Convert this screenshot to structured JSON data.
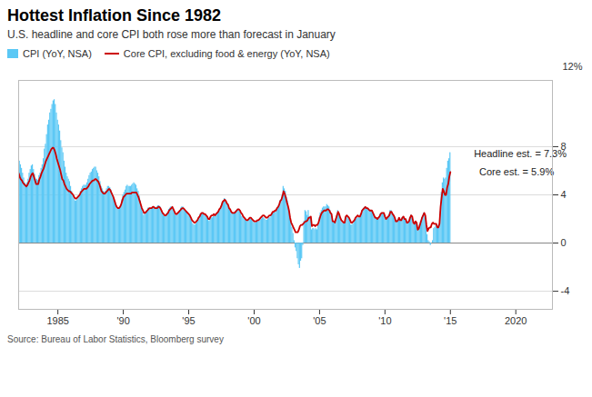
{
  "chart_data": {
    "type": "bar",
    "title": "Hottest Inflation Since 1982",
    "subtitle": "U.S. headline and core CPI both rose more than forecast in January",
    "source": "Source: Bureau of Labor Statistics, Bloomberg survey",
    "ylabel": "12%",
    "grid": true,
    "legend": "top",
    "xlim": [
      1982,
      2022.8
    ],
    "xticks": [
      1985,
      {
        "value": 1990,
        "label": "'90"
      },
      {
        "value": 1995,
        "label": "'95"
      },
      {
        "value": 2000,
        "label": "'00"
      },
      {
        "value": 2005,
        "label": "'05"
      },
      {
        "value": 2010,
        "label": "'10"
      },
      {
        "value": 2015,
        "label": "'15"
      },
      2020
    ],
    "ylim": [
      -5.5,
      13.5
    ],
    "yticks": [
      -4,
      0,
      4,
      8
    ],
    "annotations": [
      {
        "text": "Headline est. = 7.3%",
        "x": 2016.8,
        "y": 7.4
      },
      {
        "text": "Core est. = 5.9%",
        "x": 2017.2,
        "y": 5.9
      }
    ],
    "x": [
      1982,
      1982.0833,
      1982.1667,
      1982.25,
      1982.3333,
      1982.4167,
      1982.5,
      1982.5833,
      1982.6667,
      1982.75,
      1982.8333,
      1982.9167,
      1983,
      1983.0833,
      1983.1667,
      1983.25,
      1983.3333,
      1983.4167,
      1983.5,
      1983.5833,
      1983.6667,
      1983.75,
      1983.8333,
      1983.9167,
      1984,
      1984.0833,
      1984.1667,
      1984.25,
      1984.3333,
      1984.4167,
      1984.5,
      1984.5833,
      1984.6667,
      1984.75,
      1984.8333,
      1984.9167,
      1985,
      1985.0833,
      1985.1667,
      1985.25,
      1985.3333,
      1985.4167,
      1985.5,
      1985.5833,
      1985.6667,
      1985.75,
      1985.8333,
      1985.9167,
      1986,
      1986.0833,
      1986.1667,
      1986.25,
      1986.3333,
      1986.4167,
      1986.5,
      1986.5833,
      1986.6667,
      1986.75,
      1986.8333,
      1986.9167,
      1987,
      1987.0833,
      1987.1667,
      1987.25,
      1987.3333,
      1987.4167,
      1987.5,
      1987.5833,
      1987.6667,
      1987.75,
      1987.8333,
      1987.9167,
      1988,
      1988.0833,
      1988.1667,
      1988.25,
      1988.3333,
      1988.4167,
      1988.5,
      1988.5833,
      1988.6667,
      1988.75,
      1988.8333,
      1988.9167,
      1989,
      1989.0833,
      1989.1667,
      1989.25,
      1989.3333,
      1989.4167,
      1989.5,
      1989.5833,
      1989.6667,
      1989.75,
      1989.8333,
      1989.9167,
      1990,
      1990.0833,
      1990.1667,
      1990.25,
      1990.3333,
      1990.4167,
      1990.5,
      1990.5833,
      1990.6667,
      1990.75,
      1990.8333,
      1990.9167,
      1991,
      1991.0833,
      1991.1667,
      1991.25,
      1991.3333,
      1991.4167,
      1991.5,
      1991.5833,
      1991.6667,
      1991.75,
      1991.8333,
      1991.9167,
      1992,
      1992.0833,
      1992.1667,
      1992.25,
      1992.3333,
      1992.4167,
      1992.5,
      1992.5833,
      1992.6667,
      1992.75,
      1992.8333,
      1992.9167,
      1993,
      1993.0833,
      1993.1667,
      1993.25,
      1993.3333,
      1993.4167,
      1993.5,
      1993.5833,
      1993.6667,
      1993.75,
      1993.8333,
      1993.9167,
      1994,
      1994.0833,
      1994.1667,
      1994.25,
      1994.3333,
      1994.4167,
      1994.5,
      1994.5833,
      1994.6667,
      1994.75,
      1994.8333,
      1994.9167,
      1995,
      1995.0833,
      1995.1667,
      1995.25,
      1995.3333,
      1995.4167,
      1995.5,
      1995.5833,
      1995.6667,
      1995.75,
      1995.8333,
      1995.9167,
      1996,
      1996.0833,
      1996.1667,
      1996.25,
      1996.3333,
      1996.4167,
      1996.5,
      1996.5833,
      1996.6667,
      1996.75,
      1996.8333,
      1996.9167,
      1997,
      1997.0833,
      1997.1667,
      1997.25,
      1997.3333,
      1997.4167,
      1997.5,
      1997.5833,
      1997.6667,
      1997.75,
      1997.8333,
      1997.9167,
      1998,
      1998.0833,
      1998.1667,
      1998.25,
      1998.3333,
      1998.4167,
      1998.5,
      1998.5833,
      1998.6667,
      1998.75,
      1998.8333,
      1998.9167,
      1999,
      1999.0833,
      1999.1667,
      1999.25,
      1999.3333,
      1999.4167,
      1999.5,
      1999.5833,
      1999.6667,
      1999.75,
      1999.8333,
      1999.9167,
      2000,
      2000.0833,
      2000.1667,
      2000.25,
      2000.3333,
      2000.4167,
      2000.5,
      2000.5833,
      2000.6667,
      2000.75,
      2000.8333,
      2000.9167,
      2001,
      2001.0833,
      2001.1667,
      2001.25,
      2001.3333,
      2001.4167,
      2001.5,
      2001.5833,
      2001.6667,
      2001.75,
      2001.8333,
      2001.9167,
      2002,
      2002.0833,
      2002.1667,
      2002.25,
      2002.3333,
      2002.4167,
      2002.5,
      2002.5833,
      2002.6667,
      2002.75,
      2002.8333,
      2002.9167,
      2003,
      2003.0833,
      2003.1667,
      2003.25,
      2003.3333,
      2003.4167,
      2003.5,
      2003.5833,
      2003.6667,
      2003.75,
      2003.8333,
      2003.9167,
      2004,
      2004.0833,
      2004.1667,
      2004.25,
      2004.3333,
      2004.4167,
      2004.5,
      2004.5833,
      2004.6667,
      2004.75,
      2004.8333,
      2004.9167,
      2005,
      2005.0833,
      2005.1667,
      2005.25,
      2005.3333,
      2005.4167,
      2005.5,
      2005.5833,
      2005.6667,
      2005.75,
      2005.8333,
      2005.9167,
      2006,
      2006.0833,
      2006.1667,
      2006.25,
      2006.3333,
      2006.4167,
      2006.5,
      2006.5833,
      2006.6667,
      2006.75,
      2006.8333,
      2006.9167,
      2007,
      2007.0833,
      2007.1667,
      2007.25,
      2007.3333,
      2007.4167,
      2007.5,
      2007.5833,
      2007.6667,
      2007.75,
      2007.8333,
      2007.9167,
      2008,
      2008.0833,
      2008.1667,
      2008.25,
      2008.3333,
      2008.4167,
      2008.5,
      2008.5833,
      2008.6667,
      2008.75,
      2008.8333,
      2008.9167,
      2009,
      2009.0833,
      2009.1667,
      2009.25,
      2009.3333,
      2009.4167,
      2009.5,
      2009.5833,
      2009.6667,
      2009.75,
      2009.8333,
      2009.9167,
      2010,
      2010.0833,
      2010.1667,
      2010.25,
      2010.3333,
      2010.4167,
      2010.5,
      2010.5833,
      2010.6667,
      2010.75,
      2010.8333,
      2010.9167,
      2011,
      2011.0833,
      2011.1667,
      2011.25,
      2011.3333,
      2011.4167,
      2011.5,
      2011.5833,
      2011.6667,
      2011.75,
      2011.8333,
      2011.9167,
      2012,
      2012.0833,
      2012.1667,
      2012.25,
      2012.3333,
      2012.4167,
      2012.5,
      2012.5833,
      2012.6667,
      2012.75,
      2012.8333,
      2012.9167,
      2013,
      2013.0833,
      2013.1667,
      2013.25,
      2013.3333,
      2013.4167,
      2013.5,
      2013.5833,
      2013.6667,
      2013.75,
      2013.8333,
      2013.9167,
      2014,
      2014.0833,
      2014.1667,
      2014.25,
      2014.3333,
      2014.4167,
      2014.5,
      2014.5833,
      2014.6667,
      2014.75,
      2014.8333,
      2014.9167,
      2015
    ],
    "series": [
      {
        "name": "CPI (YoY, NSA)",
        "type": "bar",
        "color": "#5BC8F5",
        "values": [
          7.0,
          6.8,
          6.5,
          6.2,
          5.8,
          5.4,
          5.0,
          4.8,
          5.0,
          5.3,
          5.8,
          6.1,
          6.4,
          6.5,
          6.1,
          5.7,
          5.3,
          5.3,
          5.2,
          5.6,
          5.8,
          6.2,
          6.5,
          7.0,
          7.8,
          8.2,
          9.0,
          9.8,
          10.2,
          10.8,
          11.1,
          11.5,
          11.8,
          11.9,
          11.5,
          10.8,
          10.2,
          9.8,
          9.3,
          8.5,
          7.9,
          7.5,
          6.8,
          6.3,
          5.8,
          5.5,
          5.3,
          5.1,
          4.7,
          4.3,
          4.0,
          3.7,
          3.5,
          3.5,
          3.6,
          3.8,
          4.0,
          4.3,
          4.5,
          4.7,
          4.8,
          4.8,
          4.8,
          5.0,
          5.3,
          5.6,
          5.8,
          5.9,
          6.1,
          6.2,
          6.3,
          6.3,
          6.0,
          5.8,
          5.5,
          5.1,
          4.7,
          4.5,
          4.3,
          4.2,
          4.3,
          4.5,
          4.7,
          4.7,
          4.6,
          4.4,
          4.1,
          3.8,
          3.5,
          3.2,
          3.0,
          2.8,
          2.8,
          3.0,
          3.2,
          3.6,
          4.0,
          4.2,
          4.4,
          4.7,
          4.8,
          4.7,
          4.7,
          4.7,
          4.8,
          4.9,
          5.0,
          4.9,
          4.8,
          4.5,
          4.3,
          3.9,
          3.5,
          3.0,
          2.6,
          2.3,
          2.4,
          2.6,
          2.7,
          2.9,
          2.9,
          2.8,
          2.9,
          3.0,
          3.0,
          2.9,
          2.9,
          3.0,
          3.1,
          3.1,
          3.0,
          2.7,
          2.5,
          2.3,
          2.2,
          2.2,
          2.4,
          2.5,
          2.8,
          2.9,
          3.0,
          3.0,
          2.8,
          2.5,
          2.3,
          2.3,
          2.4,
          2.5,
          2.7,
          2.9,
          3.0,
          3.0,
          2.8,
          2.7,
          2.6,
          2.5,
          2.3,
          2.2,
          2.0,
          1.8,
          1.6,
          1.5,
          1.5,
          1.6,
          1.8,
          2.0,
          2.2,
          2.4,
          2.5,
          2.5,
          2.4,
          2.3,
          2.2,
          2.1,
          1.9,
          1.8,
          2.0,
          2.1,
          2.1,
          2.2,
          2.2,
          2.3,
          2.4,
          2.5,
          2.7,
          2.8,
          3.0,
          3.3,
          3.5,
          3.7,
          3.6,
          3.4,
          3.2,
          3.0,
          2.8,
          2.6,
          2.5,
          2.5,
          2.5,
          2.6,
          2.7,
          2.8,
          2.8,
          2.6,
          2.4,
          2.2,
          2.1,
          2.0,
          1.9,
          1.8,
          1.8,
          1.9,
          2.0,
          2.0,
          1.9,
          1.8,
          1.7,
          1.7,
          1.7,
          1.8,
          1.8,
          1.8,
          1.9,
          2.0,
          2.1,
          2.1,
          2.0,
          1.9,
          1.9,
          2.0,
          2.1,
          2.1,
          2.3,
          2.5,
          2.5,
          2.5,
          2.6,
          2.8,
          3.0,
          3.2,
          3.5,
          3.6,
          4.0,
          4.7,
          4.5,
          4.3,
          3.8,
          3.5,
          2.9,
          2.2,
          1.7,
          1.3,
          0.8,
          0.2,
          -0.4,
          -0.7,
          -1.3,
          -1.8,
          -2.1,
          -1.5,
          -1.3,
          -0.2,
          1.8,
          2.7,
          2.6,
          2.3,
          2.7,
          2.2,
          2.0,
          1.1,
          1.2,
          1.2,
          1.1,
          1.2,
          1.1,
          1.5,
          2.1,
          2.5,
          2.7,
          2.9,
          3.0,
          3.0,
          3.0,
          3.2,
          3.1,
          3.0,
          2.7,
          2.5,
          1.8,
          1.8,
          1.7,
          2.0,
          2.3,
          2.7,
          2.5,
          2.1,
          1.9,
          1.7,
          1.6,
          1.6,
          2.1,
          2.2,
          2.1,
          2.0,
          1.8,
          1.5,
          1.5,
          1.6,
          1.8,
          1.9,
          2.0,
          2.1,
          2.1,
          2.1,
          2.4,
          2.7,
          2.8,
          2.9,
          3.0,
          2.9,
          2.9,
          2.8,
          2.7,
          2.7,
          2.7,
          2.5,
          2.4,
          2.1,
          2.1,
          2.0,
          2.1,
          2.2,
          2.4,
          2.5,
          2.5,
          2.5,
          2.2,
          2.0,
          2.1,
          2.2,
          2.4,
          2.7,
          2.7,
          2.5,
          2.4,
          2.1,
          1.8,
          1.8,
          1.9,
          2.1,
          1.9,
          1.9,
          2.1,
          2.2,
          2.0,
          2.0,
          1.7,
          1.7,
          1.8,
          2.1,
          2.3,
          2.2,
          1.7,
          1.6,
          1.8,
          1.7,
          1.1,
          1.2,
          1.5,
          1.8,
          2.1,
          2.3,
          2.5,
          2.3,
          1.5,
          0.7,
          0.2,
          0.1,
          -0.2,
          0.0,
          0.2,
          1.2,
          1.3,
          1.5,
          1.3,
          1.4,
          1.6,
          2.6,
          4.2,
          5.0,
          5.4,
          5.3,
          5.4,
          6.2,
          6.8,
          7.0,
          7.5
        ]
      },
      {
        "name": "Core CPI, excluding food & energy (YoY, NSA)",
        "type": "line",
        "color": "#CC0000",
        "values": [
          5.8,
          5.5,
          5.3,
          5.2,
          5.0,
          4.9,
          4.8,
          4.7,
          4.8,
          5.0,
          5.2,
          5.5,
          5.7,
          5.8,
          5.5,
          5.2,
          4.9,
          4.9,
          4.9,
          5.3,
          5.5,
          5.8,
          6.0,
          6.2,
          6.5,
          6.8,
          7.0,
          7.2,
          7.4,
          7.6,
          7.8,
          7.9,
          7.9,
          7.7,
          7.4,
          7.0,
          6.7,
          6.4,
          6.1,
          5.7,
          5.3,
          5.2,
          4.9,
          4.7,
          4.5,
          4.4,
          4.3,
          4.3,
          4.2,
          4.1,
          4.0,
          3.8,
          3.7,
          3.7,
          3.8,
          3.9,
          4.0,
          4.2,
          4.3,
          4.4,
          4.5,
          4.5,
          4.5,
          4.6,
          4.7,
          4.9,
          5.0,
          5.1,
          5.2,
          5.2,
          5.3,
          5.3,
          5.2,
          5.1,
          4.9,
          4.6,
          4.3,
          4.2,
          4.1,
          4.1,
          4.2,
          4.3,
          4.4,
          4.5,
          4.4,
          4.2,
          4.0,
          3.8,
          3.5,
          3.2,
          3.0,
          2.9,
          2.9,
          3.0,
          3.2,
          3.5,
          3.8,
          3.9,
          4.0,
          4.1,
          4.1,
          4.1,
          4.1,
          4.1,
          4.2,
          4.2,
          4.2,
          4.2,
          4.2,
          4.0,
          3.8,
          3.5,
          3.2,
          2.9,
          2.7,
          2.5,
          2.5,
          2.6,
          2.7,
          2.8,
          2.9,
          2.9,
          2.9,
          3.0,
          3.0,
          2.9,
          2.9,
          2.9,
          3.0,
          3.0,
          2.9,
          2.7,
          2.5,
          2.4,
          2.3,
          2.3,
          2.4,
          2.5,
          2.7,
          2.8,
          2.9,
          3.0,
          2.8,
          2.6,
          2.4,
          2.4,
          2.5,
          2.6,
          2.7,
          2.8,
          2.9,
          2.9,
          2.8,
          2.7,
          2.6,
          2.5,
          2.4,
          2.3,
          2.1,
          1.9,
          1.8,
          1.7,
          1.7,
          1.8,
          1.9,
          2.1,
          2.2,
          2.4,
          2.5,
          2.5,
          2.4,
          2.4,
          2.3,
          2.2,
          2.0,
          2.0,
          2.2,
          2.3,
          2.3,
          2.4,
          2.3,
          2.4,
          2.5,
          2.6,
          2.8,
          2.9,
          3.1,
          3.4,
          3.5,
          3.6,
          3.5,
          3.3,
          3.2,
          2.9,
          2.8,
          2.6,
          2.5,
          2.5,
          2.5,
          2.6,
          2.7,
          2.8,
          2.8,
          2.7,
          2.5,
          2.4,
          2.2,
          2.1,
          2.0,
          1.9,
          1.9,
          2.0,
          2.1,
          2.1,
          2.0,
          1.9,
          1.8,
          1.8,
          1.8,
          1.9,
          1.9,
          2.0,
          2.1,
          2.2,
          2.3,
          2.3,
          2.2,
          2.1,
          2.1,
          2.2,
          2.3,
          2.3,
          2.4,
          2.6,
          2.6,
          2.7,
          2.7,
          2.9,
          3.0,
          3.2,
          3.5,
          3.6,
          3.9,
          4.3,
          4.1,
          3.8,
          3.4,
          3.1,
          2.7,
          2.1,
          1.7,
          1.5,
          1.3,
          1.1,
          0.9,
          0.9,
          0.9,
          1.1,
          1.4,
          1.5,
          1.5,
          1.6,
          1.7,
          1.8,
          1.8,
          1.9,
          2.1,
          2.1,
          2.2,
          1.4,
          1.5,
          1.5,
          1.4,
          1.5,
          1.5,
          1.7,
          2.0,
          2.3,
          2.5,
          2.6,
          2.7,
          2.7,
          2.7,
          2.8,
          2.8,
          2.7,
          2.5,
          2.4,
          1.8,
          1.8,
          1.7,
          2.0,
          2.3,
          2.6,
          2.4,
          2.1,
          1.9,
          1.8,
          1.7,
          1.7,
          2.2,
          2.3,
          2.2,
          2.1,
          1.9,
          1.7,
          1.7,
          1.8,
          1.9,
          2.1,
          2.2,
          2.3,
          2.2,
          2.2,
          2.4,
          2.7,
          2.8,
          2.9,
          3.0,
          2.9,
          2.9,
          2.8,
          2.7,
          2.7,
          2.7,
          2.5,
          2.3,
          2.1,
          2.1,
          2.0,
          2.1,
          2.2,
          2.4,
          2.5,
          2.5,
          2.5,
          2.2,
          2.0,
          2.1,
          2.2,
          2.3,
          2.6,
          2.6,
          2.4,
          2.3,
          2.1,
          1.8,
          1.8,
          1.9,
          2.1,
          1.9,
          1.9,
          2.1,
          2.2,
          2.0,
          2.0,
          1.7,
          1.7,
          1.8,
          2.1,
          2.3,
          2.2,
          1.7,
          1.6,
          1.8,
          1.7,
          1.1,
          1.2,
          1.5,
          1.8,
          2.1,
          2.3,
          2.5,
          2.3,
          1.5,
          1.0,
          1.2,
          1.3,
          1.3,
          1.6,
          1.7,
          1.6,
          1.6,
          1.6,
          1.3,
          1.3,
          1.6,
          3.0,
          3.8,
          4.5,
          4.3,
          4.0,
          4.0,
          4.6,
          4.9,
          5.5,
          5.9
        ]
      }
    ]
  }
}
